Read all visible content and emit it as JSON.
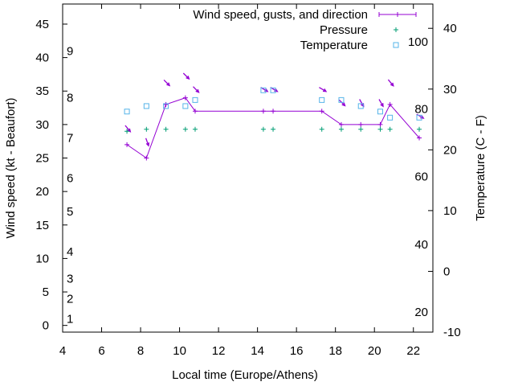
{
  "chart_data": {
    "type": "line",
    "title": "",
    "xlabel": "Local time (Europe/Athens)",
    "ylabel": "Wind speed (kt - Beaufort)",
    "y2label": "Temperature (C - F)",
    "xlim": [
      4,
      23
    ],
    "ylim": [
      -1,
      48
    ],
    "y2lim": [
      -10,
      44
    ],
    "xticks": [
      "4",
      "6",
      "8",
      "10",
      "12",
      "14",
      "16",
      "18",
      "20",
      "22"
    ],
    "yticks": [
      "0",
      "5",
      "10",
      "15",
      "20",
      "25",
      "30",
      "35",
      "40",
      "45"
    ],
    "y2ticks": [
      "-10",
      "0",
      "10",
      "20",
      "30",
      "40"
    ],
    "beaufort_labels": [
      {
        "label": "1",
        "kt": 1
      },
      {
        "label": "2",
        "kt": 4
      },
      {
        "label": "3",
        "kt": 7
      },
      {
        "label": "4",
        "kt": 11
      },
      {
        "label": "5",
        "kt": 17
      },
      {
        "label": "6",
        "kt": 22
      },
      {
        "label": "7",
        "kt": 28
      },
      {
        "label": "8",
        "kt": 34
      },
      {
        "label": "9",
        "kt": 41
      }
    ],
    "fahrenheit_labels": [
      {
        "label": "20",
        "c": -6.7
      },
      {
        "label": "40",
        "c": 4.4
      },
      {
        "label": "60",
        "c": 15.6
      },
      {
        "label": "80",
        "c": 26.7
      },
      {
        "label": "100",
        "c": 37.8
      }
    ],
    "legend": {
      "wind": "Wind speed, gusts, and direction",
      "pressure": "Pressure",
      "temperature": "Temperature"
    },
    "wind_series": {
      "name": "Wind speed, gusts, and direction",
      "color": "#9400d3",
      "x": [
        7.3,
        8.3,
        9.3,
        10.3,
        10.8,
        14.3,
        14.8,
        17.3,
        18.3,
        19.3,
        20.3,
        20.8,
        22.3
      ],
      "values": [
        27,
        25,
        33,
        34,
        32,
        32,
        32,
        32,
        30,
        30,
        30,
        33,
        28
      ],
      "direction_deg": [
        320,
        340,
        315,
        315,
        315,
        300,
        300,
        300,
        315,
        330,
        330,
        320,
        300
      ]
    },
    "pressure_series": {
      "name": "Pressure",
      "color": "#009e73",
      "x": [
        7.3,
        8.3,
        9.3,
        10.3,
        10.8,
        14.3,
        14.8,
        17.3,
        18.3,
        19.3,
        20.3,
        20.8,
        22.3
      ],
      "values": [
        29,
        29.3,
        29.3,
        29.3,
        29.3,
        29.3,
        29.3,
        29.3,
        29.3,
        29.3,
        29.3,
        29.3,
        29.3
      ]
    },
    "temperature_series": {
      "name": "Temperature",
      "color": "#56b4e9",
      "x": [
        7.3,
        8.3,
        9.3,
        10.3,
        10.8,
        14.3,
        14.8,
        17.3,
        18.3,
        19.3,
        20.3,
        20.8,
        22.3
      ],
      "values_c": [
        26.3,
        27.2,
        27.2,
        27.2,
        28.2,
        29.8,
        29.8,
        28.2,
        28.2,
        27.2,
        26.3,
        25.3,
        25.3
      ]
    }
  }
}
